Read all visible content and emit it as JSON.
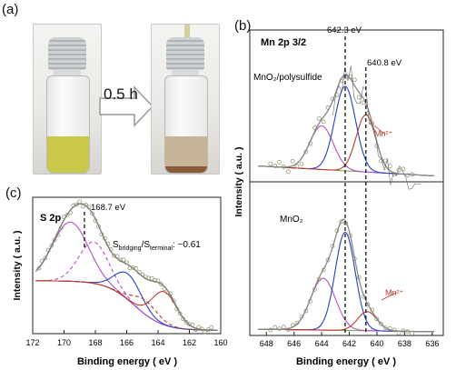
{
  "panel_a": {
    "label": "(a)",
    "arrow_label": "0.5 h",
    "colors": {
      "before_liquid": "#c9c84a",
      "after_liquid": "#c7b398",
      "after_sediment": "#8a5b3a"
    }
  },
  "panel_b": {
    "label": "(b)",
    "title": "Mn 2p 3/2",
    "ylabel": "Intensity  ( a.u. )",
    "xlabel": "Binding energy  ( eV )",
    "peak_label_1": "642.3 eV",
    "peak_label_2": "640.8 eV",
    "top_sample": "MnO₂/polysulfide",
    "bottom_sample": "MnO₂",
    "mn_label_top": "Mn²⁺",
    "mn_label_bottom": "Mn²⁺",
    "ticks": [
      "648",
      "646",
      "644",
      "642",
      "640",
      "638",
      "636"
    ]
  },
  "panel_c": {
    "label": "(c)",
    "title": "S 2p",
    "ylabel": "Intensity  ( a.u. )",
    "xlabel": "Binding energy  ( eV )",
    "peak_label": "168.7 eV",
    "ratio_text": "S bridging/S terminal: ~0.61",
    "ticks": [
      "172",
      "170",
      "168",
      "166",
      "164",
      "162",
      "160"
    ]
  },
  "chart_data": [
    {
      "type": "line",
      "title": "Mn 2p 3/2",
      "xlabel": "Binding energy ( eV )",
      "ylabel": "Intensity ( a.u. )",
      "xlim": [
        649,
        635
      ],
      "series": [
        {
          "name": "MnO₂/polysulfide",
          "x": [
            648,
            647,
            646,
            645,
            644,
            643,
            642.3,
            641.5,
            640.8,
            640,
            639,
            638,
            637
          ],
          "values": [
            0.12,
            0.15,
            0.22,
            0.4,
            0.62,
            0.86,
            1.0,
            0.86,
            0.8,
            0.5,
            0.25,
            0.13,
            0.08
          ]
        },
        {
          "name": "MnO₂",
          "x": [
            648,
            647,
            646,
            645,
            644,
            643,
            642.3,
            641.5,
            640.8,
            640,
            639,
            638,
            637
          ],
          "values": [
            0.05,
            0.1,
            0.18,
            0.38,
            0.62,
            0.86,
            1.0,
            0.72,
            0.45,
            0.26,
            0.14,
            0.09,
            0.07
          ]
        }
      ],
      "annotations": [
        "642.3 eV",
        "640.8 eV",
        "Mn²⁺"
      ]
    },
    {
      "type": "line",
      "title": "S 2p",
      "xlabel": "Binding energy ( eV )",
      "ylabel": "Intensity ( a.u. )",
      "xlim": [
        172,
        160
      ],
      "series": [
        {
          "name": "",
          "x": [
            171.5,
            170.5,
            169.5,
            168.7,
            168,
            167,
            166,
            165,
            164,
            163.5,
            163,
            162,
            161
          ],
          "values": [
            0.18,
            0.55,
            0.9,
            1.0,
            0.85,
            0.4,
            0.28,
            0.3,
            0.36,
            0.32,
            0.18,
            0.04,
            0.02
          ]
        }
      ],
      "annotations": [
        "168.7 eV",
        "S bridging/S terminal: ~0.61"
      ]
    }
  ]
}
